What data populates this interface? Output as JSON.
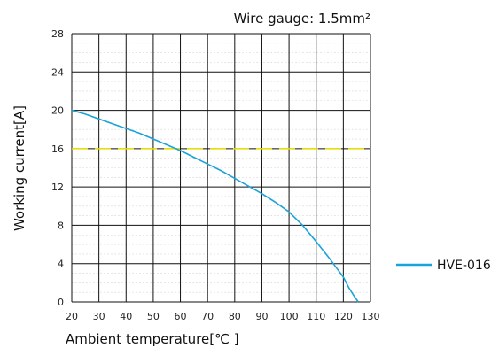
{
  "chart_data": {
    "type": "line",
    "title": "Wire gauge: 1.5mm²",
    "xlabel": "Ambient temperature[℃ ]",
    "ylabel": "Working current[A]",
    "xlim": [
      20,
      130
    ],
    "ylim": [
      0,
      28
    ],
    "x_ticks": [
      "20",
      "30",
      "40",
      "50",
      "60",
      "70",
      "80",
      "90",
      "100",
      "110",
      "120",
      "130"
    ],
    "y_ticks": [
      "0",
      "4",
      "8",
      "12",
      "16",
      "20",
      "24",
      "28"
    ],
    "grid": true,
    "legend_position": "right",
    "reference_line": {
      "y": 16,
      "color": "#e8e000"
    },
    "series": [
      {
        "name": "HVE-016",
        "color": "#1aa3d9",
        "x": [
          20,
          25,
          30,
          35,
          40,
          45,
          50,
          55,
          60,
          65,
          70,
          75,
          80,
          85,
          90,
          95,
          100,
          105,
          110,
          115,
          120,
          122,
          124,
          125.5
        ],
        "y": [
          20,
          19.6,
          19.1,
          18.6,
          18.1,
          17.6,
          17.0,
          16.4,
          15.8,
          15.1,
          14.4,
          13.7,
          12.9,
          12.1,
          11.3,
          10.4,
          9.4,
          8.0,
          6.3,
          4.5,
          2.6,
          1.5,
          0.6,
          0
        ]
      }
    ]
  }
}
